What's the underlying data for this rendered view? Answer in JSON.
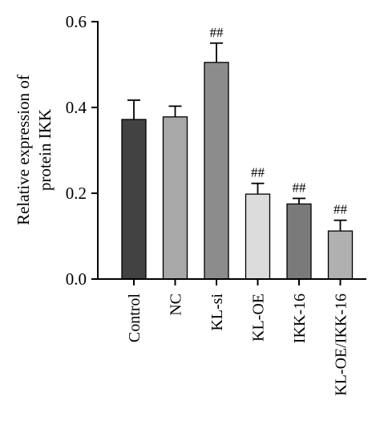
{
  "chart_data": {
    "type": "bar",
    "title": "",
    "xlabel": "",
    "ylabel_lines": [
      "Relative expression of",
      "protein IKK"
    ],
    "ylim": [
      0,
      0.6
    ],
    "yticks": [
      "0.0",
      "0.2",
      "0.4",
      "0.6"
    ],
    "ytick_values": [
      0,
      0.2,
      0.4,
      0.6
    ],
    "categories": [
      "Control",
      "NC",
      "KL-si",
      "KL-OE",
      "IKK-16",
      "KL-OE/IKK-16"
    ],
    "values": [
      0.372,
      0.378,
      0.505,
      0.198,
      0.175,
      0.112
    ],
    "error": [
      0.045,
      0.025,
      0.045,
      0.025,
      0.013,
      0.025
    ],
    "annotations": [
      "",
      "",
      "##",
      "##",
      "##",
      "##"
    ],
    "bar_colors": [
      "#424242",
      "#a8a8a8",
      "#8c8c8c",
      "#dcdcdc",
      "#7a7a7a",
      "#b0b0b0"
    ],
    "grid": false,
    "legend": "none"
  }
}
